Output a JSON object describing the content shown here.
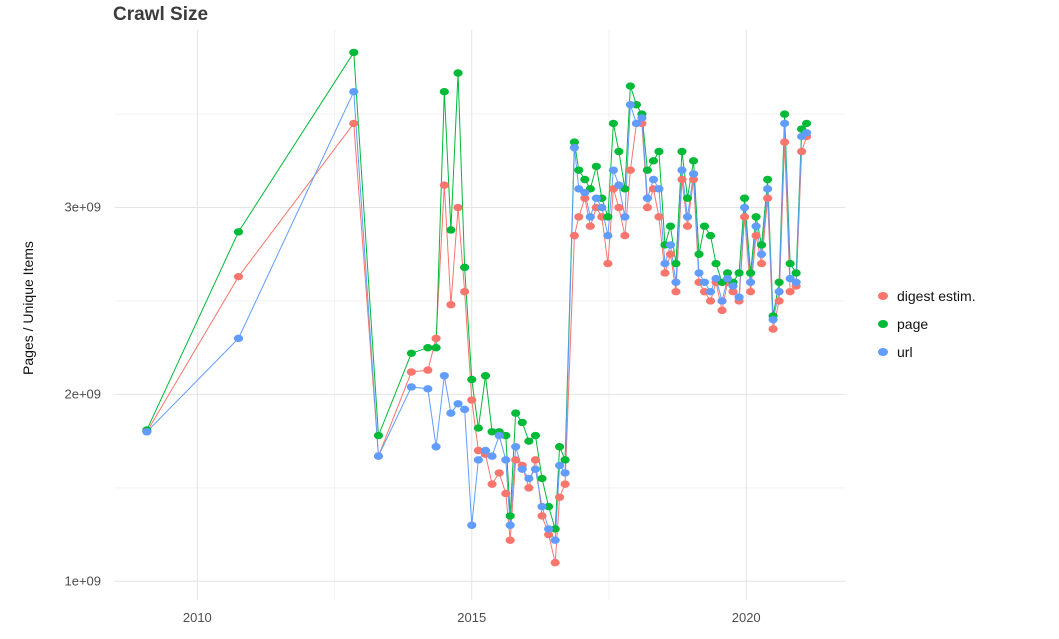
{
  "title": "Crawl Size",
  "y_axis": {
    "label": "Pages / Unique Items",
    "ticks": [
      {
        "value": 1,
        "label": "1e+09"
      },
      {
        "value": 2,
        "label": "2e+09"
      },
      {
        "value": 3,
        "label": "3e+09"
      }
    ],
    "minor": [
      1.5,
      2.5,
      3.5
    ]
  },
  "x_axis": {
    "ticks": [
      {
        "value": 2010,
        "label": "2010"
      },
      {
        "value": 2015,
        "label": "2015"
      },
      {
        "value": 2020,
        "label": "2020"
      }
    ],
    "minor": [
      2012.5,
      2017.5
    ]
  },
  "legend": {
    "items": [
      {
        "label": "digest estim.",
        "color": "#F8766D"
      },
      {
        "label": "page",
        "color": "#00BA38"
      },
      {
        "label": "url",
        "color": "#619CFF"
      }
    ]
  },
  "chart_data": {
    "type": "line",
    "title": "Crawl Size",
    "xlabel": "",
    "ylabel": "Pages / Unique Items",
    "unit": "values in billions (1e9) of pages / unique items, estimated from plot",
    "xlim": [
      2008.5,
      2021.8
    ],
    "ylim": [
      0.9,
      3.95
    ],
    "grid": true,
    "legend_position": "right",
    "x": [
      2009.08,
      2010.75,
      2012.85,
      2013.3,
      2013.9,
      2014.2,
      2014.35,
      2014.5,
      2014.62,
      2014.75,
      2014.87,
      2015.0,
      2015.12,
      2015.25,
      2015.37,
      2015.5,
      2015.62,
      2015.7,
      2015.8,
      2015.92,
      2016.04,
      2016.16,
      2016.28,
      2016.4,
      2016.52,
      2016.6,
      2016.7,
      2016.87,
      2016.95,
      2017.06,
      2017.16,
      2017.27,
      2017.37,
      2017.48,
      2017.58,
      2017.68,
      2017.79,
      2017.89,
      2018.0,
      2018.1,
      2018.2,
      2018.31,
      2018.41,
      2018.52,
      2018.62,
      2018.72,
      2018.83,
      2018.93,
      2019.04,
      2019.14,
      2019.24,
      2019.35,
      2019.45,
      2019.56,
      2019.66,
      2019.76,
      2019.87,
      2019.97,
      2020.08,
      2020.18,
      2020.28,
      2020.39,
      2020.49,
      2020.6,
      2020.7,
      2020.8,
      2020.91,
      2021.01,
      2021.1
    ],
    "series": [
      {
        "name": "digest estim.",
        "color": "#F8766D",
        "values": [
          1.8,
          2.63,
          3.45,
          1.67,
          2.12,
          2.13,
          2.3,
          3.12,
          2.48,
          3.0,
          2.55,
          1.97,
          1.7,
          1.68,
          1.52,
          1.58,
          1.47,
          1.22,
          1.65,
          1.62,
          1.5,
          1.65,
          1.35,
          1.25,
          1.1,
          1.45,
          1.52,
          2.85,
          2.95,
          3.05,
          2.9,
          3.0,
          2.95,
          2.7,
          3.1,
          3.0,
          2.85,
          3.2,
          3.45,
          3.45,
          3.0,
          3.1,
          2.95,
          2.65,
          2.75,
          2.55,
          3.15,
          2.9,
          3.15,
          2.6,
          2.55,
          2.5,
          2.6,
          2.45,
          2.6,
          2.55,
          2.5,
          2.95,
          2.55,
          2.85,
          2.7,
          3.05,
          2.35,
          2.5,
          3.35,
          2.55,
          2.58,
          3.3,
          3.38
        ]
      },
      {
        "name": "page",
        "color": "#00BA38",
        "values": [
          1.81,
          2.87,
          3.83,
          1.78,
          2.22,
          2.25,
          2.25,
          3.62,
          2.88,
          3.72,
          2.68,
          2.08,
          1.82,
          2.1,
          1.8,
          1.8,
          1.78,
          1.35,
          1.9,
          1.85,
          1.75,
          1.78,
          1.55,
          1.4,
          1.28,
          1.72,
          1.65,
          3.35,
          3.2,
          3.15,
          3.1,
          3.22,
          3.05,
          2.95,
          3.45,
          3.3,
          3.1,
          3.65,
          3.55,
          3.5,
          3.2,
          3.25,
          3.3,
          2.8,
          2.9,
          2.7,
          3.3,
          3.05,
          3.25,
          2.75,
          2.9,
          2.85,
          2.7,
          2.6,
          2.65,
          2.6,
          2.65,
          3.05,
          2.65,
          2.95,
          2.8,
          3.15,
          2.42,
          2.6,
          3.5,
          2.7,
          2.65,
          3.42,
          3.45
        ]
      },
      {
        "name": "url",
        "color": "#619CFF",
        "values": [
          1.8,
          2.3,
          3.62,
          1.67,
          2.04,
          2.03,
          1.72,
          2.1,
          1.9,
          1.95,
          1.92,
          1.3,
          1.65,
          1.7,
          1.67,
          1.78,
          1.65,
          1.3,
          1.72,
          1.6,
          1.55,
          1.6,
          1.4,
          1.28,
          1.22,
          1.62,
          1.58,
          3.32,
          3.1,
          3.08,
          2.95,
          3.05,
          3.0,
          2.85,
          3.2,
          3.12,
          2.95,
          3.55,
          3.45,
          3.48,
          3.05,
          3.15,
          3.1,
          2.7,
          2.8,
          2.6,
          3.2,
          2.95,
          3.18,
          2.65,
          2.6,
          2.55,
          2.62,
          2.5,
          2.62,
          2.58,
          2.52,
          3.0,
          2.6,
          2.9,
          2.75,
          3.1,
          2.4,
          2.55,
          3.45,
          2.62,
          2.6,
          3.38,
          3.4
        ]
      }
    ]
  }
}
